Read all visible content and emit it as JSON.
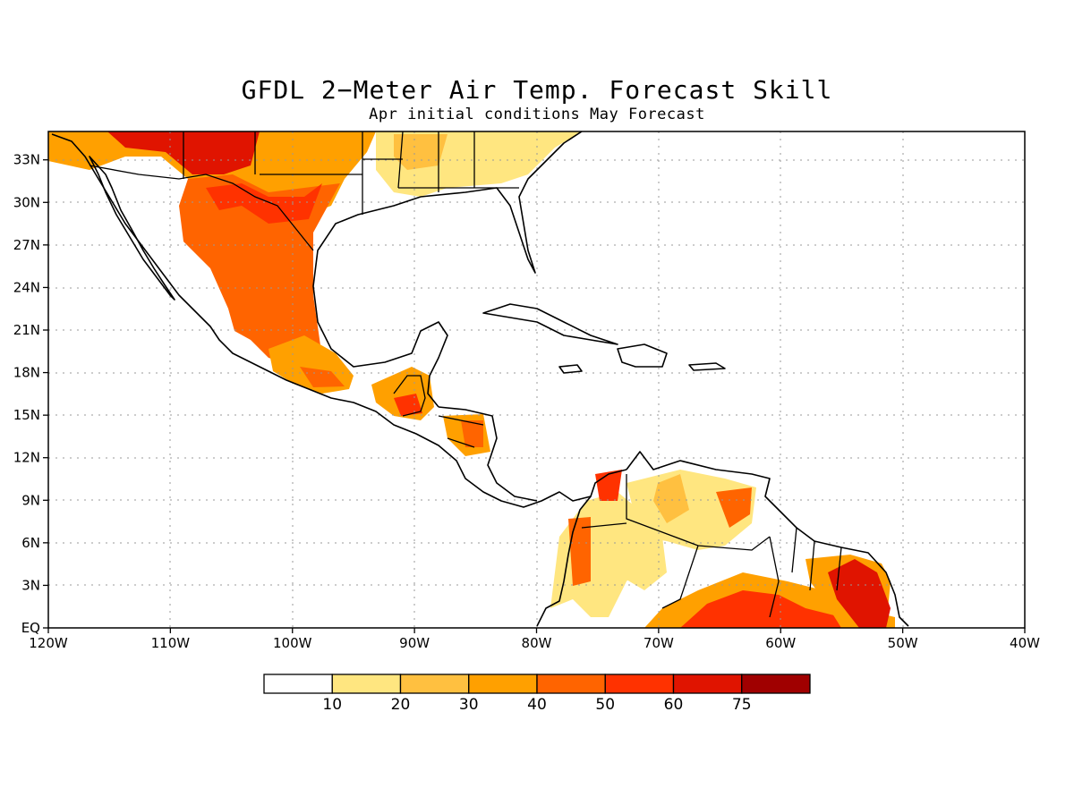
{
  "header": {
    "title": "GFDL 2−Meter Air Temp. Forecast Skill",
    "subtitle": "Apr initial conditions   May Forecast"
  },
  "map": {
    "lon_range": [
      -120,
      -40
    ],
    "lat_range": [
      0,
      35
    ],
    "x_tick_labels": [
      "120W",
      "110W",
      "100W",
      "90W",
      "80W",
      "70W",
      "60W",
      "50W",
      "40W"
    ],
    "x_tick_values": [
      -120,
      -110,
      -100,
      -90,
      -80,
      -70,
      -60,
      -50,
      -40
    ],
    "y_tick_labels": [
      "EQ",
      "3N",
      "6N",
      "9N",
      "12N",
      "15N",
      "18N",
      "21N",
      "24N",
      "27N",
      "30N",
      "33N"
    ],
    "y_tick_values": [
      0,
      3,
      6,
      9,
      12,
      15,
      18,
      21,
      24,
      27,
      30,
      33
    ],
    "grid": "dotted",
    "land_outline_color": "#000000"
  },
  "colorbar": {
    "labels": [
      "10",
      "20",
      "30",
      "40",
      "50",
      "60",
      "75"
    ],
    "colors": [
      "#ffffff",
      "#ffe680",
      "#ffc040",
      "#ffa000",
      "#ff6400",
      "#ff3200",
      "#e01400",
      "#a00000"
    ]
  },
  "skill_regions": [
    {
      "name": "southwest-us",
      "level": 6
    },
    {
      "name": "texas-northern-mexico",
      "level": 5
    },
    {
      "name": "central-mexico",
      "level": 4
    },
    {
      "name": "southeast-us",
      "level": 2
    },
    {
      "name": "guatemala",
      "level": 5
    },
    {
      "name": "nicaragua",
      "level": 4
    },
    {
      "name": "northern-colombia",
      "level": 5
    },
    {
      "name": "venezuela",
      "level": 4
    },
    {
      "name": "amazon-north",
      "level": 5
    },
    {
      "name": "french-guiana-amapa",
      "level": 6
    }
  ]
}
